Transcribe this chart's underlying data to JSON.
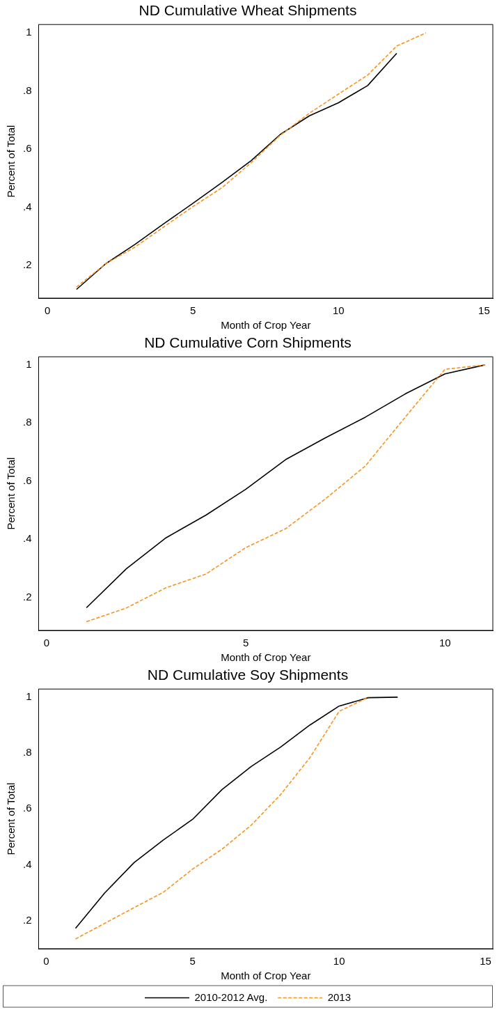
{
  "chart_data": [
    {
      "type": "line",
      "title": "ND Cumulative Wheat Shipments",
      "xlabel": "Month of Crop Year",
      "ylabel": "Percent of Total",
      "x": [
        1,
        2,
        3,
        4,
        5,
        6,
        7,
        8,
        9,
        10,
        11,
        12,
        13
      ],
      "series": [
        {
          "color": "#000000",
          "line_style": "solid",
          "values": [
            0.118,
            0.206,
            0.272,
            0.344,
            0.414,
            0.486,
            0.561,
            0.651,
            0.715,
            0.76,
            0.819,
            0.93,
            null
          ]
        },
        {
          "color": "#f7931e",
          "line_style": "dashed",
          "values": [
            0.126,
            0.206,
            0.263,
            0.333,
            0.403,
            0.468,
            0.554,
            0.648,
            0.724,
            0.79,
            0.855,
            0.955,
            1.0
          ]
        }
      ],
      "xlim": [
        -0.3,
        15.3
      ],
      "xticks": [
        0,
        5,
        10,
        15
      ],
      "ylim": [
        0.088,
        1.029
      ],
      "yticks": [
        {
          "value": 0.2,
          "label": ".2"
        },
        {
          "value": 0.4,
          "label": ".4"
        },
        {
          "value": 0.6,
          "label": ".6"
        },
        {
          "value": 0.8,
          "label": ".8"
        },
        {
          "value": 1,
          "label": "1"
        }
      ],
      "grid": false,
      "legend": false,
      "marker": "none"
    },
    {
      "type": "line",
      "title": "ND Cumulative Corn Shipments",
      "xlabel": "Month of Crop Year",
      "ylabel": "Percent of Total",
      "x": [
        1,
        2,
        3,
        4,
        5,
        6,
        7,
        8,
        9,
        10,
        11
      ],
      "series": [
        {
          "color": "#000000",
          "line_style": "solid",
          "values": [
            0.164,
            0.298,
            0.405,
            0.483,
            0.572,
            0.674,
            0.749,
            0.82,
            0.9,
            0.969,
            1.0
          ]
        },
        {
          "color": "#f7931e",
          "line_style": "dashed",
          "values": [
            0.116,
            0.163,
            0.233,
            0.28,
            0.371,
            0.436,
            0.539,
            0.652,
            0.82,
            0.985,
            1.0
          ]
        }
      ],
      "xlim": [
        -0.2,
        11.2
      ],
      "xticks": [
        0,
        5,
        10
      ],
      "ylim": [
        0.086,
        1.028
      ],
      "yticks": [
        {
          "value": 0.2,
          "label": ".2"
        },
        {
          "value": 0.4,
          "label": ".4"
        },
        {
          "value": 0.6,
          "label": ".6"
        },
        {
          "value": 0.8,
          "label": ".8"
        },
        {
          "value": 1,
          "label": "1"
        }
      ],
      "grid": false,
      "legend": false,
      "marker": "none"
    },
    {
      "type": "line",
      "title": "ND Cumulative Soy Shipments",
      "xlabel": "Month of Crop Year",
      "ylabel": "Percent of Total",
      "x": [
        1,
        2,
        3,
        4,
        5,
        6,
        7,
        8,
        9,
        10,
        11,
        12
      ],
      "series": [
        {
          "name": "2010-2012 Avg.",
          "color": "#000000",
          "line_style": "solid",
          "values": [
            0.173,
            0.3,
            0.408,
            0.489,
            0.563,
            0.669,
            0.752,
            0.821,
            0.9,
            0.968,
            0.998,
            1.0
          ]
        },
        {
          "name": "2013",
          "color": "#f7931e",
          "line_style": "dashed",
          "values": [
            0.135,
            0.191,
            0.247,
            0.302,
            0.385,
            0.456,
            0.542,
            0.651,
            0.783,
            0.949,
            1.0,
            null
          ]
        }
      ],
      "xlim": [
        -0.26,
        15.25
      ],
      "xticks": [
        0,
        5,
        10,
        15
      ],
      "ylim": [
        0.1,
        1.029
      ],
      "yticks": [
        {
          "value": 0.2,
          "label": ".2"
        },
        {
          "value": 0.4,
          "label": ".4"
        },
        {
          "value": 0.6,
          "label": ".6"
        },
        {
          "value": 0.8,
          "label": ".8"
        },
        {
          "value": 1,
          "label": "1"
        }
      ],
      "grid": false,
      "legend": "bottom",
      "marker": "none"
    }
  ]
}
